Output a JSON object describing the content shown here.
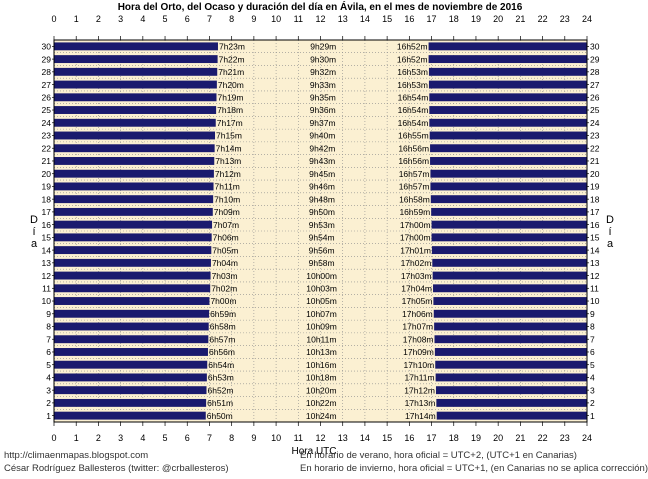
{
  "chart_data": {
    "type": "bar",
    "title": "Hora del Orto, del Ocaso y duración del día en Ávila, en el mes de noviembre de 2016",
    "xlabel": "Hora UTC",
    "ylabel": "Día",
    "xlim": [
      0,
      24
    ],
    "ylim": [
      1,
      30
    ],
    "x_ticks": [
      "0",
      "1",
      "2",
      "3",
      "4",
      "5",
      "6",
      "7",
      "8",
      "9",
      "10",
      "11",
      "12",
      "13",
      "14",
      "15",
      "16",
      "17",
      "18",
      "19",
      "20",
      "21",
      "22",
      "23",
      "24"
    ],
    "grid": true,
    "days": [
      1,
      2,
      3,
      4,
      5,
      6,
      7,
      8,
      9,
      10,
      11,
      12,
      13,
      14,
      15,
      16,
      17,
      18,
      19,
      20,
      21,
      22,
      23,
      24,
      25,
      26,
      27,
      28,
      29,
      30
    ],
    "sunrise": [
      "6h50m",
      "6h51m",
      "6h52m",
      "6h53m",
      "6h54m",
      "6h56m",
      "6h57m",
      "6h58m",
      "6h59m",
      "7h00m",
      "7h02m",
      "7h03m",
      "7h04m",
      "7h05m",
      "7h06m",
      "7h07m",
      "7h09m",
      "7h10m",
      "7h11m",
      "7h12m",
      "7h13m",
      "7h14m",
      "7h15m",
      "7h17m",
      "7h18m",
      "7h19m",
      "7h20m",
      "7h21m",
      "7h22m",
      "7h23m"
    ],
    "daylength": [
      "10h24m",
      "10h22m",
      "10h20m",
      "10h18m",
      "10h16m",
      "10h13m",
      "10h11m",
      "10h09m",
      "10h07m",
      "10h05m",
      "10h03m",
      "10h00m",
      "9h58m",
      "9h56m",
      "9h54m",
      "9h53m",
      "9h50m",
      "9h48m",
      "9h46m",
      "9h45m",
      "9h43m",
      "9h42m",
      "9h40m",
      "9h37m",
      "9h36m",
      "9h35m",
      "9h33m",
      "9h32m",
      "9h30m",
      "9h29m"
    ],
    "sunset": [
      "17h14m",
      "17h13m",
      "17h12m",
      "17h11m",
      "17h10m",
      "17h09m",
      "17h08m",
      "17h07m",
      "17h06m",
      "17h05m",
      "17h04m",
      "17h03m",
      "17h02m",
      "17h01m",
      "17h00m",
      "17h00m",
      "16h59m",
      "16h58m",
      "16h57m",
      "16h57m",
      "16h56m",
      "16h56m",
      "16h55m",
      "16h54m",
      "16h54m",
      "16h54m",
      "16h53m",
      "16h53m",
      "16h52m",
      "16h52m"
    ]
  },
  "colors": {
    "night_bar": "#1a1a6e",
    "plot_bg": "#fbf0d2",
    "grid": "#8a8a8a"
  },
  "footer": {
    "blog": "http://climaenmapas.blogspot.com",
    "author": "César Rodríguez Ballesteros (twitter: @crballesteros)",
    "note_summer": "En horario de verano, hora oficial = UTC+2, (UTC+1 en Canarias)",
    "note_winter": "En horario de invierno, hora oficial = UTC+1, (en Canarias no se aplica corrección)"
  }
}
